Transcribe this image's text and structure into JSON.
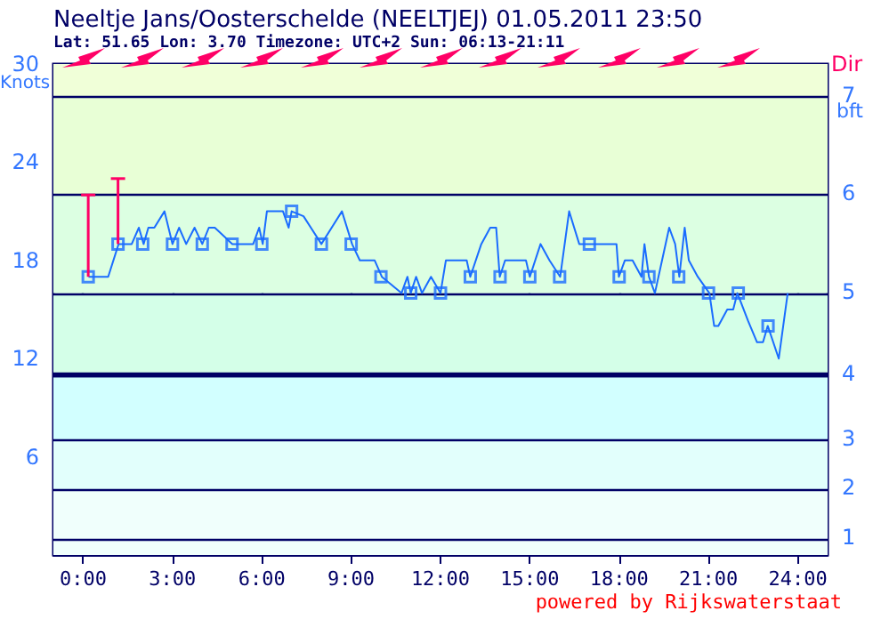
{
  "chart_data": {
    "type": "line",
    "title": "Neeltje Jans/Oosterschelde (NEELTJEJ) 01.05.2011 23:50",
    "subtitle": "Lat: 51.65 Lon: 3.70 Timezone: UTC+2 Sun: 06:13-21:11",
    "ylabel": "Knots",
    "annotations": [
      "Dir",
      "bft",
      "powered by Rijkswaterstaat",
      "1",
      "2",
      "3",
      "4",
      "5",
      "6",
      "7"
    ],
    "xlim": [
      -1,
      25
    ],
    "xticks": [
      {
        "value": 0,
        "label": "0:00"
      },
      {
        "value": 3,
        "label": "3:00"
      },
      {
        "value": 6,
        "label": "6:00"
      },
      {
        "value": 9,
        "label": "9:00"
      },
      {
        "value": 12,
        "label": "12:00"
      },
      {
        "value": 15,
        "label": "15:00"
      },
      {
        "value": 18,
        "label": "18:00"
      },
      {
        "value": 21,
        "label": "21:00"
      },
      {
        "value": 24,
        "label": "24:00"
      }
    ],
    "ylim": [
      0,
      30
    ],
    "yticks": [
      6,
      12,
      18,
      24,
      30
    ],
    "grid": "x",
    "bands": [
      {
        "axis": "y",
        "from": 0,
        "to": 4,
        "color": "#f0fffc"
      },
      {
        "axis": "y",
        "from": 4,
        "to": 7,
        "color": "#e2fffc"
      },
      {
        "axis": "y",
        "from": 7,
        "to": 11,
        "color": "#d2ffff"
      },
      {
        "axis": "y",
        "from": 11,
        "to": 16,
        "color": "#d4ffe8"
      },
      {
        "axis": "y",
        "from": 16,
        "to": 22,
        "color": "#dcffe2"
      },
      {
        "axis": "y",
        "from": 22,
        "to": 28,
        "color": "#e8ffd6"
      },
      {
        "axis": "y",
        "from": 28,
        "to": 30,
        "color": "#f0ffd8"
      },
      {
        "axis": "y",
        "from": 10.85,
        "to": 11.15,
        "color": "#000066"
      }
    ],
    "ref_lines": [
      {
        "axis": "y",
        "value": 1,
        "color": "#000066"
      },
      {
        "axis": "y",
        "value": 4,
        "color": "#000066"
      },
      {
        "axis": "y",
        "value": 7,
        "color": "#000066"
      },
      {
        "axis": "y",
        "value": 11,
        "color": "#000066"
      },
      {
        "axis": "y",
        "value": 16,
        "color": "#000066"
      },
      {
        "axis": "y",
        "value": 22,
        "color": "#000066"
      },
      {
        "axis": "y",
        "value": 28,
        "color": "#000066"
      }
    ],
    "series": [
      {
        "marker": "none",
        "color": "#1a6cff",
        "x": [
          0.18,
          0.84,
          1.19,
          1.63,
          1.87,
          2.03,
          2.19,
          2.39,
          2.73,
          3.0,
          3.22,
          3.46,
          3.74,
          4.0,
          4.22,
          4.42,
          5.01,
          5.71,
          5.91,
          6.03,
          6.17,
          6.71,
          6.9,
          7.0,
          7.4,
          8.0,
          8.69,
          9.03,
          9.29,
          9.79,
          10.03,
          10.69,
          10.89,
          11.0,
          11.18,
          11.38,
          11.68,
          12.0,
          12.18,
          12.88,
          13.0,
          13.37,
          13.67,
          13.87,
          13.99,
          14.17,
          14.87,
          15.0,
          15.36,
          15.66,
          16.02,
          16.32,
          16.66,
          17.91,
          17.99,
          18.19,
          18.45,
          18.75,
          18.85,
          19.0,
          19.2,
          19.44,
          19.68,
          19.88,
          20.02,
          20.2,
          20.34,
          20.64,
          21.03,
          21.19,
          21.33,
          21.63,
          21.83,
          21.97,
          22.33,
          22.63,
          22.83,
          22.99,
          23.36,
          23.66
        ],
        "values": [
          17,
          17,
          19,
          19,
          20,
          19,
          20,
          20,
          21,
          19,
          20,
          19,
          20,
          19,
          20,
          20,
          19,
          19,
          20,
          19,
          21,
          21,
          20,
          21,
          20.7,
          19,
          21,
          19,
          18,
          18,
          17,
          16,
          17,
          16,
          17,
          16,
          17,
          16,
          18,
          18,
          17,
          19,
          20,
          20,
          17,
          18,
          18,
          17,
          19,
          18,
          17,
          21,
          19,
          19,
          17,
          18,
          18,
          17,
          19,
          17,
          16,
          18,
          20,
          19,
          17,
          20,
          18,
          17,
          16,
          14,
          14,
          15,
          15,
          16,
          14.3,
          13,
          13,
          14,
          12,
          16
        ]
      },
      {
        "type": "scatter",
        "marker": "square",
        "color": "#1a6cff",
        "x": [
          0.17,
          1.17,
          2,
          3,
          4,
          5,
          6,
          7,
          8,
          9,
          10,
          11,
          12,
          13,
          14,
          15,
          16,
          17,
          18,
          19,
          20,
          21,
          22,
          23
        ],
        "values": [
          17,
          19,
          19,
          19,
          19,
          19,
          19,
          21,
          19,
          19,
          17,
          16,
          16,
          17,
          17,
          17,
          17,
          19,
          17,
          17,
          17,
          16,
          16,
          14
        ],
        "errors": [
          [
            17,
            22
          ],
          [
            19,
            23
          ],
          null,
          null,
          null,
          null,
          null,
          null,
          null,
          null,
          null,
          null,
          null,
          null,
          null,
          null,
          null,
          null,
          null,
          null,
          null,
          null,
          null,
          null
        ]
      }
    ]
  }
}
